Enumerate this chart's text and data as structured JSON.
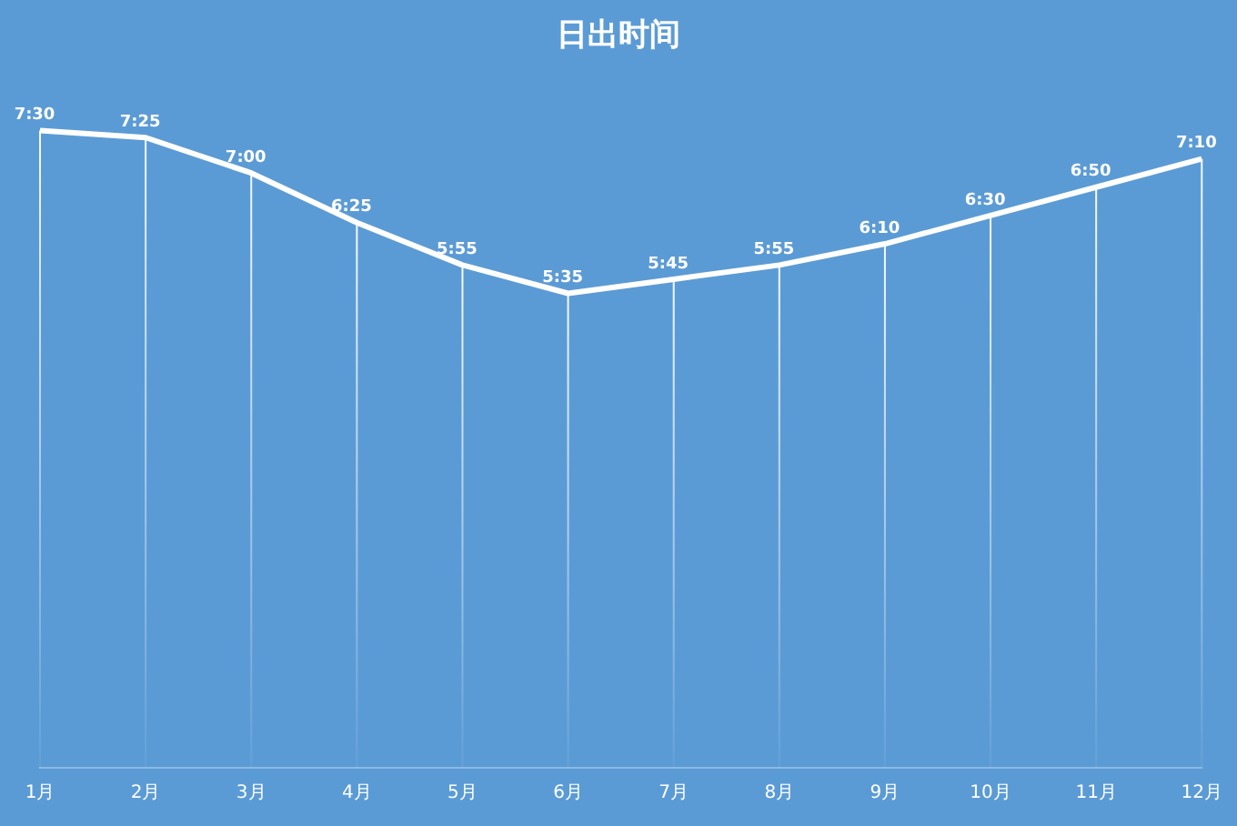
{
  "chart_data": {
    "type": "line",
    "title": "日出时间",
    "categories": [
      "1月",
      "2月",
      "3月",
      "4月",
      "5月",
      "6月",
      "7月",
      "8月",
      "9月",
      "10月",
      "11月",
      "12月"
    ],
    "series": [
      {
        "color": "#ffffff",
        "values": [
          7.5,
          7.4167,
          7.0,
          6.4167,
          5.9167,
          5.5833,
          5.75,
          5.9167,
          6.1667,
          6.5,
          6.8333,
          7.1667
        ],
        "value_labels": [
          "7:30",
          "7:25",
          "7:00",
          "6:25",
          "5:55",
          "5:35",
          "5:45",
          "5:55",
          "6:10",
          "6:30",
          "6:50",
          "7:10"
        ]
      }
    ],
    "tick_labels": "x",
    "grid": "x",
    "legend": false,
    "marker": "none",
    "line_style": "solid"
  }
}
